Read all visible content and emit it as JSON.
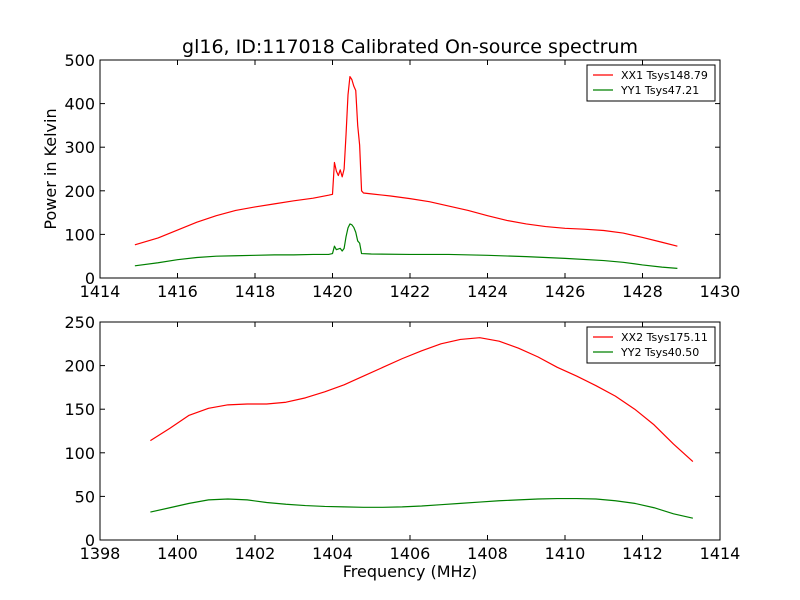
{
  "chart_data": [
    {
      "type": "line",
      "title": "gl16, ID:117018 Calibrated On-source spectrum",
      "xlabel": "",
      "ylabel": "Power in Kelvin",
      "xlim": [
        1414,
        1430
      ],
      "ylim": [
        0,
        500
      ],
      "xticks": [
        1414,
        1416,
        1418,
        1420,
        1422,
        1424,
        1426,
        1428,
        1430
      ],
      "yticks": [
        0,
        100,
        200,
        300,
        400,
        500
      ],
      "grid": false,
      "legend": "top-right",
      "series": [
        {
          "name": "XX1 Tsys148.79",
          "color": "#ff0000",
          "points": [
            [
              1414.9,
              76
            ],
            [
              1415.5,
              92
            ],
            [
              1416,
              110
            ],
            [
              1416.5,
              128
            ],
            [
              1417,
              143
            ],
            [
              1417.5,
              155
            ],
            [
              1418,
              163
            ],
            [
              1418.5,
              170
            ],
            [
              1419,
              177
            ],
            [
              1419.5,
              183
            ],
            [
              1419.9,
              190
            ],
            [
              1420,
              192
            ],
            [
              1420.05,
              265
            ],
            [
              1420.1,
              245
            ],
            [
              1420.15,
              235
            ],
            [
              1420.2,
              248
            ],
            [
              1420.25,
              232
            ],
            [
              1420.3,
              250
            ],
            [
              1420.35,
              330
            ],
            [
              1420.4,
              420
            ],
            [
              1420.45,
              462
            ],
            [
              1420.5,
              455
            ],
            [
              1420.55,
              440
            ],
            [
              1420.6,
              430
            ],
            [
              1420.65,
              350
            ],
            [
              1420.7,
              305
            ],
            [
              1420.75,
              200
            ],
            [
              1420.8,
              195
            ],
            [
              1421,
              193
            ],
            [
              1421.5,
              188
            ],
            [
              1422,
              182
            ],
            [
              1422.5,
              175
            ],
            [
              1423,
              165
            ],
            [
              1423.5,
              155
            ],
            [
              1424,
              143
            ],
            [
              1424.5,
              132
            ],
            [
              1425,
              124
            ],
            [
              1425.5,
              118
            ],
            [
              1426,
              114
            ],
            [
              1426.5,
              112
            ],
            [
              1427,
              109
            ],
            [
              1427.5,
              103
            ],
            [
              1428,
              93
            ],
            [
              1428.5,
              82
            ],
            [
              1428.9,
              73
            ]
          ]
        },
        {
          "name": "YY1 Tsys47.21",
          "color": "#008000",
          "points": [
            [
              1414.9,
              28
            ],
            [
              1415.5,
              35
            ],
            [
              1416,
              42
            ],
            [
              1416.5,
              47
            ],
            [
              1417,
              50
            ],
            [
              1417.5,
              51
            ],
            [
              1418,
              52
            ],
            [
              1418.5,
              53
            ],
            [
              1419,
              53
            ],
            [
              1419.5,
              54
            ],
            [
              1419.9,
              54
            ],
            [
              1420,
              56
            ],
            [
              1420.05,
              73
            ],
            [
              1420.1,
              65
            ],
            [
              1420.2,
              68
            ],
            [
              1420.25,
              62
            ],
            [
              1420.3,
              68
            ],
            [
              1420.35,
              95
            ],
            [
              1420.4,
              115
            ],
            [
              1420.45,
              124
            ],
            [
              1420.5,
              122
            ],
            [
              1420.55,
              116
            ],
            [
              1420.6,
              105
            ],
            [
              1420.65,
              85
            ],
            [
              1420.7,
              80
            ],
            [
              1420.75,
              56
            ],
            [
              1421,
              55
            ],
            [
              1422,
              54
            ],
            [
              1423,
              54
            ],
            [
              1424,
              52
            ],
            [
              1425,
              49
            ],
            [
              1426,
              45
            ],
            [
              1427,
              40
            ],
            [
              1427.5,
              36
            ],
            [
              1428,
              30
            ],
            [
              1428.5,
              25
            ],
            [
              1428.9,
              22
            ]
          ]
        }
      ]
    },
    {
      "type": "line",
      "title": "",
      "xlabel": "Frequency (MHz)",
      "ylabel": "",
      "xlim": [
        1398,
        1414
      ],
      "ylim": [
        0,
        250
      ],
      "xticks": [
        1398,
        1400,
        1402,
        1404,
        1406,
        1408,
        1410,
        1412,
        1414
      ],
      "yticks": [
        0,
        50,
        100,
        150,
        200,
        250
      ],
      "grid": false,
      "legend": "top-right",
      "series": [
        {
          "name": "XX2 Tsys175.11",
          "color": "#ff0000",
          "points": [
            [
              1399.3,
              114
            ],
            [
              1399.8,
              128
            ],
            [
              1400.3,
              143
            ],
            [
              1400.8,
              151
            ],
            [
              1401.3,
              155
            ],
            [
              1401.8,
              156
            ],
            [
              1402.3,
              156
            ],
            [
              1402.8,
              158
            ],
            [
              1403.3,
              163
            ],
            [
              1403.8,
              170
            ],
            [
              1404.3,
              178
            ],
            [
              1404.8,
              188
            ],
            [
              1405.3,
              198
            ],
            [
              1405.8,
              208
            ],
            [
              1406.3,
              217
            ],
            [
              1406.8,
              225
            ],
            [
              1407.3,
              230
            ],
            [
              1407.8,
              232
            ],
            [
              1408.3,
              228
            ],
            [
              1408.8,
              220
            ],
            [
              1409.3,
              210
            ],
            [
              1409.8,
              198
            ],
            [
              1410.3,
              188
            ],
            [
              1410.8,
              177
            ],
            [
              1411.3,
              165
            ],
            [
              1411.8,
              150
            ],
            [
              1412.3,
              132
            ],
            [
              1412.8,
              110
            ],
            [
              1413.3,
              90
            ]
          ]
        },
        {
          "name": "YY2 Tsys40.50",
          "color": "#008000",
          "points": [
            [
              1399.3,
              32
            ],
            [
              1399.8,
              37
            ],
            [
              1400.3,
              42
            ],
            [
              1400.8,
              46
            ],
            [
              1401.3,
              47
            ],
            [
              1401.8,
              46
            ],
            [
              1402.3,
              43
            ],
            [
              1402.8,
              41
            ],
            [
              1403.3,
              39.5
            ],
            [
              1403.8,
              38.5
            ],
            [
              1404.3,
              38
            ],
            [
              1404.8,
              37.5
            ],
            [
              1405.3,
              37.5
            ],
            [
              1405.8,
              38
            ],
            [
              1406.3,
              39
            ],
            [
              1406.8,
              40.5
            ],
            [
              1407.3,
              42
            ],
            [
              1407.8,
              43.5
            ],
            [
              1408.3,
              45
            ],
            [
              1408.8,
              46
            ],
            [
              1409.3,
              47
            ],
            [
              1409.8,
              47.5
            ],
            [
              1410.3,
              47.5
            ],
            [
              1410.8,
              47
            ],
            [
              1411.3,
              45
            ],
            [
              1411.8,
              42
            ],
            [
              1412.3,
              37
            ],
            [
              1412.8,
              30
            ],
            [
              1413.3,
              25
            ]
          ]
        }
      ]
    }
  ]
}
